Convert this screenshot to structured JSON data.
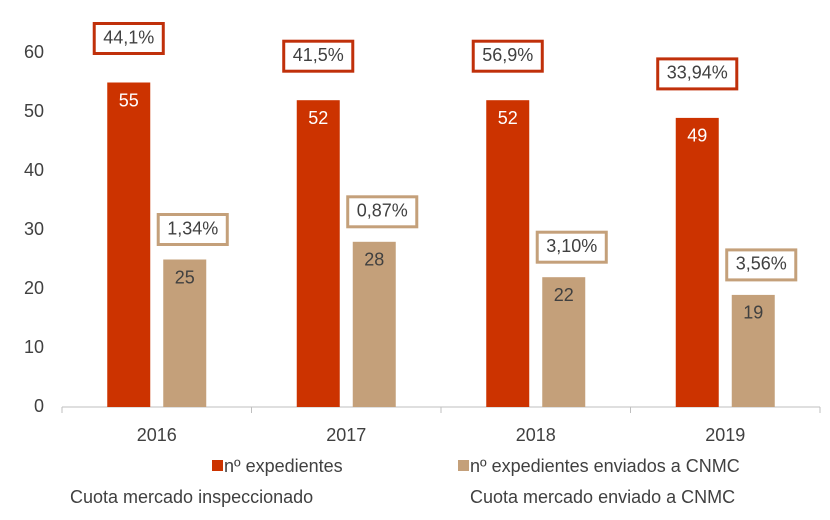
{
  "chart_data": {
    "type": "bar",
    "categories": [
      "2016",
      "2017",
      "2018",
      "2019"
    ],
    "series": [
      {
        "name": "nº expedientes",
        "color": "#cc3300",
        "values": [
          55,
          52,
          52,
          49
        ],
        "annotation_name": "Cuota mercado inspeccionado",
        "annotation_color": "#c0300a",
        "annotations": [
          "44,1%",
          "41,5%",
          "56,9%",
          "33,94%"
        ]
      },
      {
        "name": "nº expedientes enviados a CNMC",
        "color": "#c4a07a",
        "values": [
          25,
          28,
          22,
          19
        ],
        "annotation_name": "Cuota mercado enviado a CNMC",
        "annotation_color": "#c4a07a",
        "annotations": [
          "1,34%",
          "0,87%",
          "3,10%",
          "3,56%"
        ]
      }
    ],
    "ylim": [
      0,
      60
    ],
    "yticks": [
      0,
      10,
      20,
      30,
      40,
      50,
      60
    ],
    "grid": false
  }
}
